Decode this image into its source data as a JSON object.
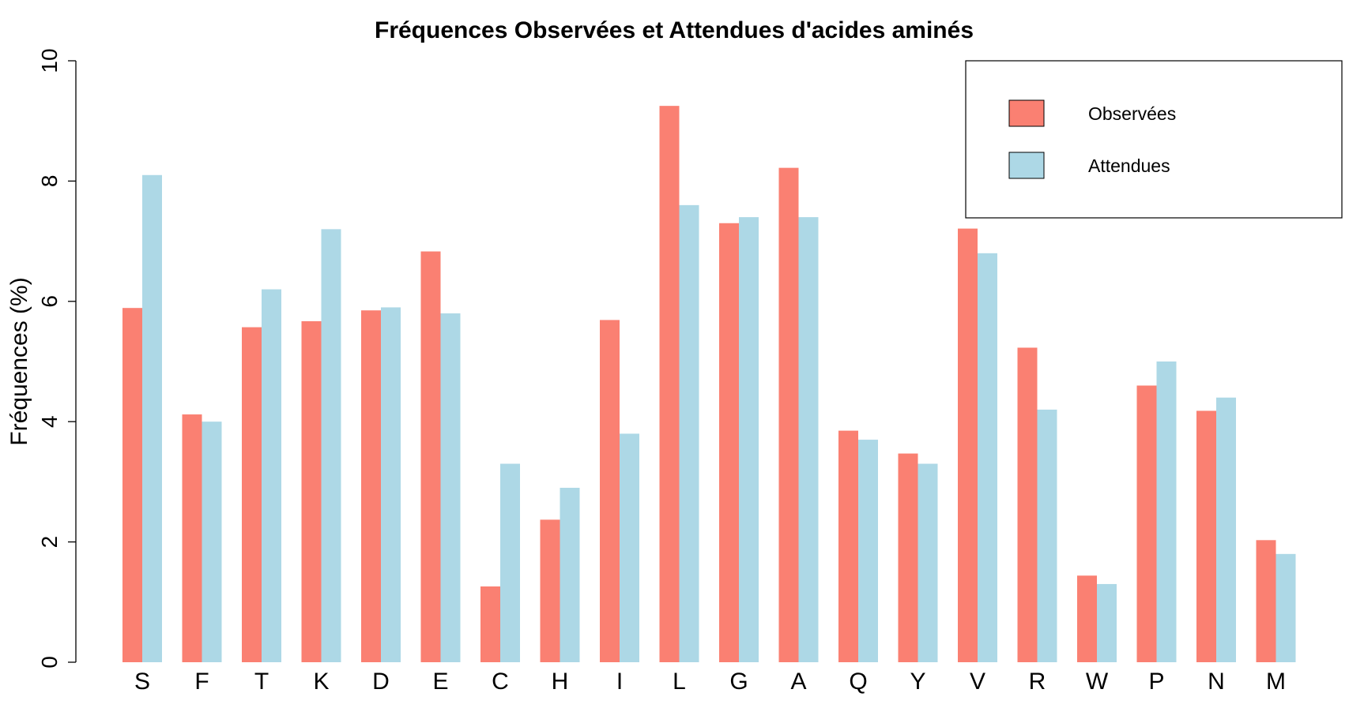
{
  "chart_data": {
    "type": "bar",
    "title": "Fréquences Observées et Attendues d'acides aminés",
    "xlabel": "",
    "ylabel": "Fréquences (%)",
    "ylim": [
      0,
      10
    ],
    "yticks": [
      0,
      2,
      4,
      6,
      8,
      10
    ],
    "grid": false,
    "legend_position": "top-right",
    "categories": [
      "S",
      "F",
      "T",
      "K",
      "D",
      "E",
      "C",
      "H",
      "I",
      "L",
      "G",
      "A",
      "Q",
      "Y",
      "V",
      "R",
      "W",
      "P",
      "N",
      "M"
    ],
    "series": [
      {
        "name": "Observées",
        "color": "#fa8072",
        "values": [
          5.89,
          4.12,
          5.57,
          5.67,
          5.85,
          6.83,
          1.26,
          2.37,
          5.69,
          9.25,
          7.3,
          8.22,
          3.85,
          3.47,
          7.21,
          5.23,
          1.44,
          4.6,
          4.18,
          2.03
        ]
      },
      {
        "name": "Attendues",
        "color": "#add8e6",
        "values": [
          8.1,
          4.0,
          6.2,
          7.2,
          5.9,
          5.8,
          3.3,
          2.9,
          3.8,
          7.6,
          7.4,
          7.4,
          3.7,
          3.3,
          6.8,
          4.2,
          1.3,
          5.0,
          4.4,
          1.8
        ]
      }
    ]
  }
}
